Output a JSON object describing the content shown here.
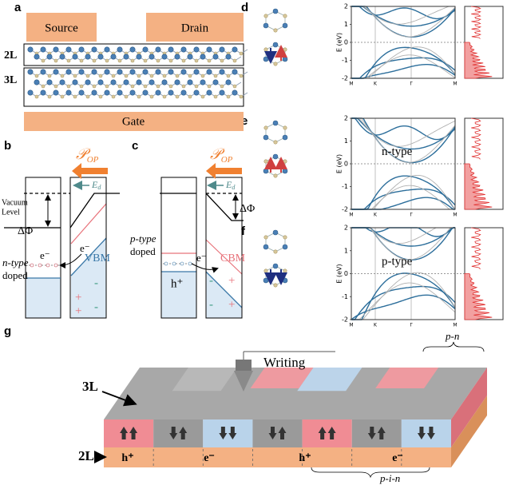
{
  "panel_labels": [
    "a",
    "b",
    "c",
    "d",
    "e",
    "f",
    "g"
  ],
  "a": {
    "source": "Source",
    "drain": "Drain",
    "layer_2l": "2L",
    "layer_3l": "3L",
    "gate": "Gate"
  },
  "b": {
    "polarization": "𝒫",
    "polarization_sub": "OP",
    "field": "E",
    "field_sub": "d",
    "vacuum_level": [
      "Vacuum",
      "Level"
    ],
    "delta_phi": "ΔΦ",
    "electron_left": "e⁻",
    "doping": [
      "n-type",
      "doped"
    ],
    "electron_right": "e⁻",
    "band_edge": "VBM",
    "charges": [
      "-",
      "+",
      "-",
      "+"
    ]
  },
  "c": {
    "polarization": "𝒫",
    "polarization_sub": "OP",
    "field": "E",
    "field_sub": "d",
    "delta_phi": "ΔΦ",
    "doping": [
      "p-type",
      "doped"
    ],
    "carrier": "h⁺",
    "electron": "e⁻",
    "band_edge": "CBM",
    "charges": [
      "-",
      "+",
      "-",
      "+"
    ]
  },
  "bands": {
    "ylabel": "E (eV)",
    "ylim": [
      -2,
      2
    ],
    "yticks": [
      2,
      1,
      0,
      -1,
      -2
    ],
    "xlabels": [
      "M",
      "K",
      "Γ",
      "M"
    ],
    "annotations": [
      null,
      "n-type",
      "p-type"
    ]
  },
  "g": {
    "writing": "Writing",
    "layer_3l": "3L",
    "layer_2l": "2L",
    "carriers": [
      "h⁺",
      "e⁻",
      "h⁺",
      "e⁻"
    ],
    "junction_pn": "p-n",
    "junction_pin": "p-i-n"
  }
}
